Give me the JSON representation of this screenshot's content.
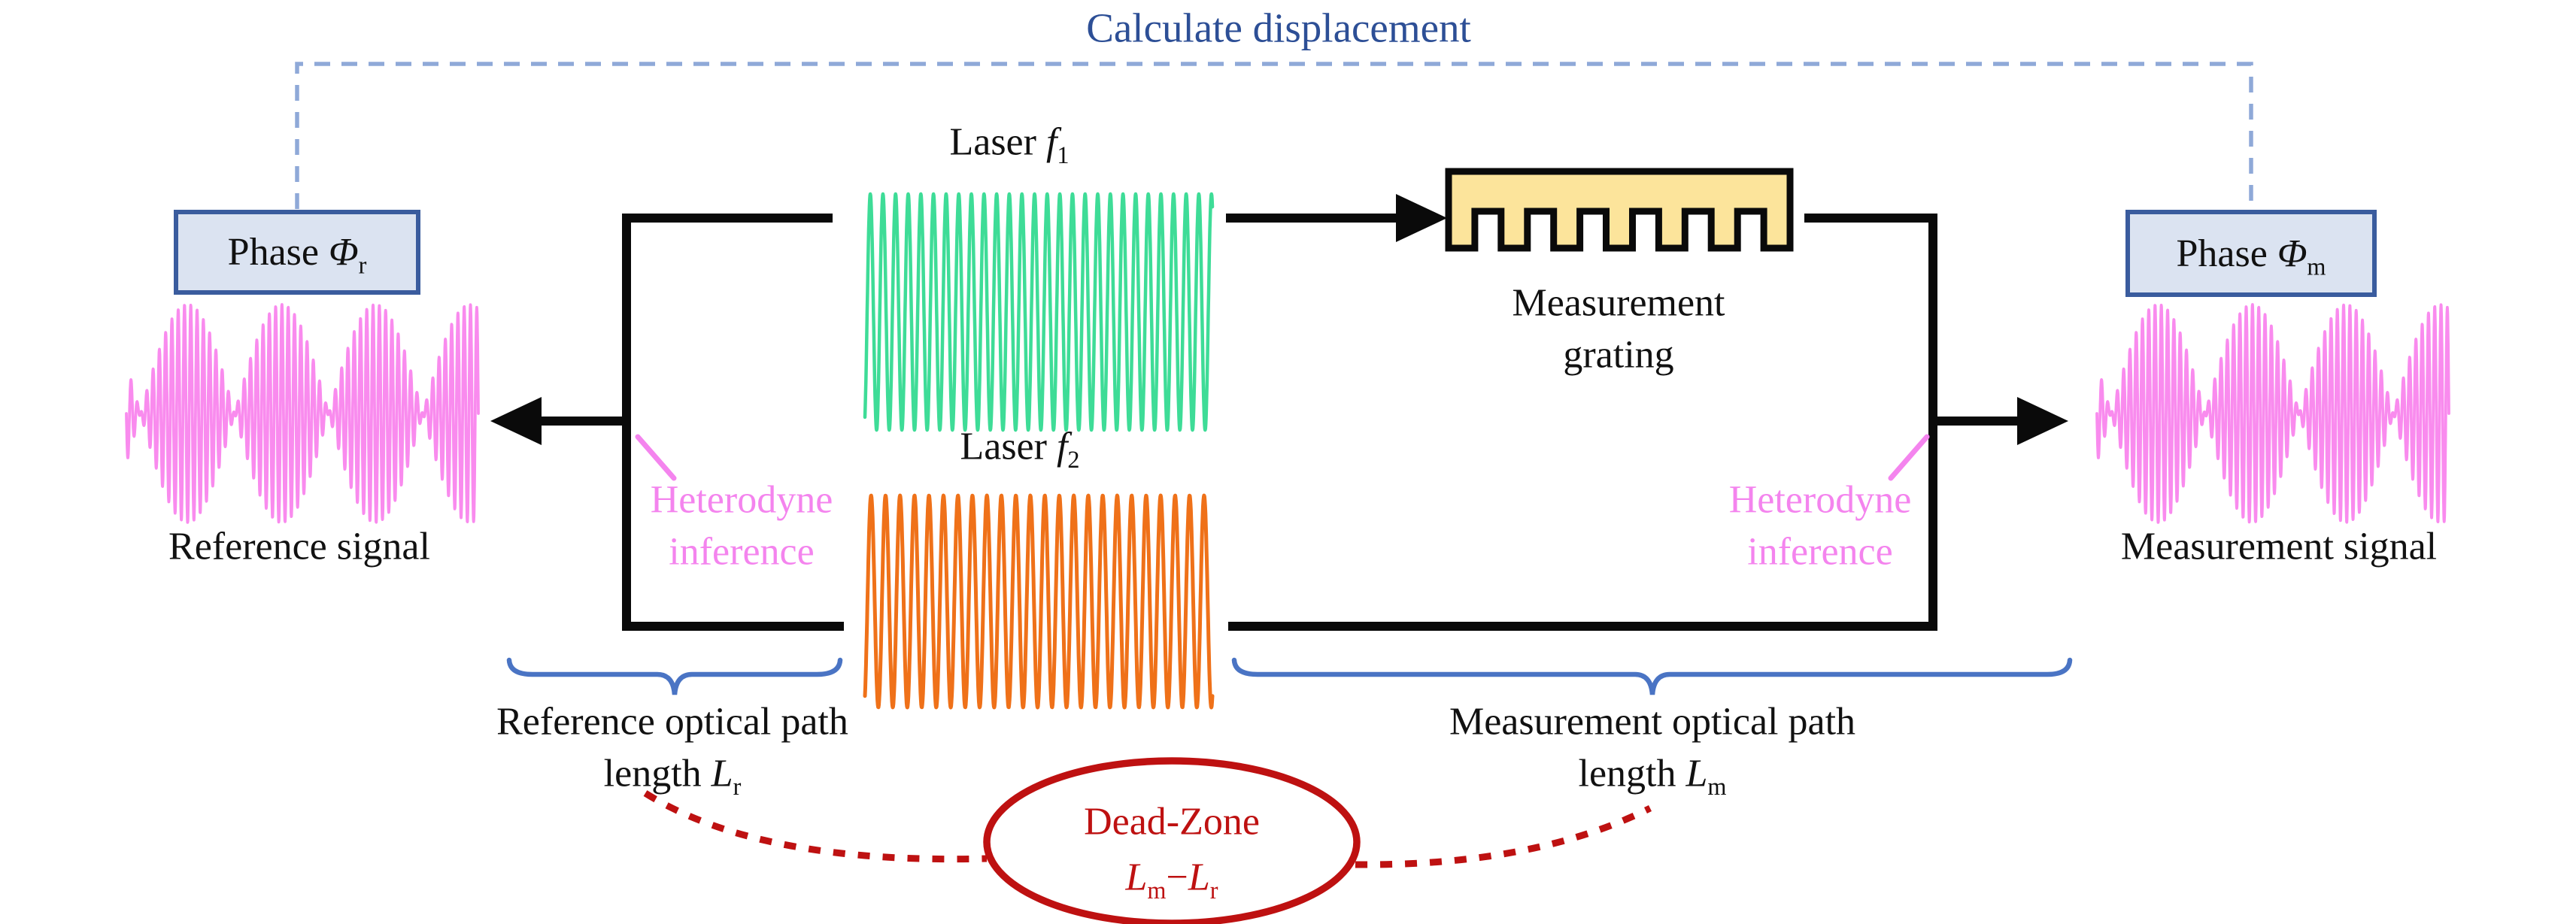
{
  "colors": {
    "background": "#ffffff",
    "calc_text_blue": "#2D4F96",
    "connector_dash_blue": "#8FA9D8",
    "phase_box_fill": "#DBE3F1",
    "phase_box_border": "#3A5C9E",
    "beam_black": "#0a0a0a",
    "laser1_green": "#3EDC97",
    "laser2_orange": "#EF7119",
    "beat_wave_pink": "#F98BEE",
    "heterodyne_pink": "#F484EE",
    "brace_blue": "#4A74C4",
    "dead_zone_red": "#BE1111",
    "grating_fill": "#FCE49B",
    "text_black": "#111111"
  },
  "top": {
    "calculate_label": "Calculate displacement"
  },
  "phase_boxes": {
    "label": "Phase",
    "symbol": "Φ",
    "reference_sub": "r",
    "measurement_sub": "m"
  },
  "lasers": {
    "label": "Laser",
    "symbol": "f",
    "laser1_sub": "1",
    "laser2_sub": "2"
  },
  "grating": {
    "label_line1": "Measurement",
    "label_line2": "grating"
  },
  "heterodyne": {
    "line1": "Heterodyne",
    "line2": "inference"
  },
  "signals": {
    "reference": "Reference signal",
    "measurement": "Measurement signal"
  },
  "optical_paths": {
    "reference_line1": "Reference optical path",
    "measurement_line1": "Measurement optical path",
    "length_word": "length",
    "length_symbol": "L",
    "reference_sub": "r",
    "measurement_sub": "m"
  },
  "dead_zone": {
    "title": "Dead-Zone",
    "length_symbol": "L",
    "sub_m": "m",
    "minus": "−",
    "sub_r": "r"
  }
}
